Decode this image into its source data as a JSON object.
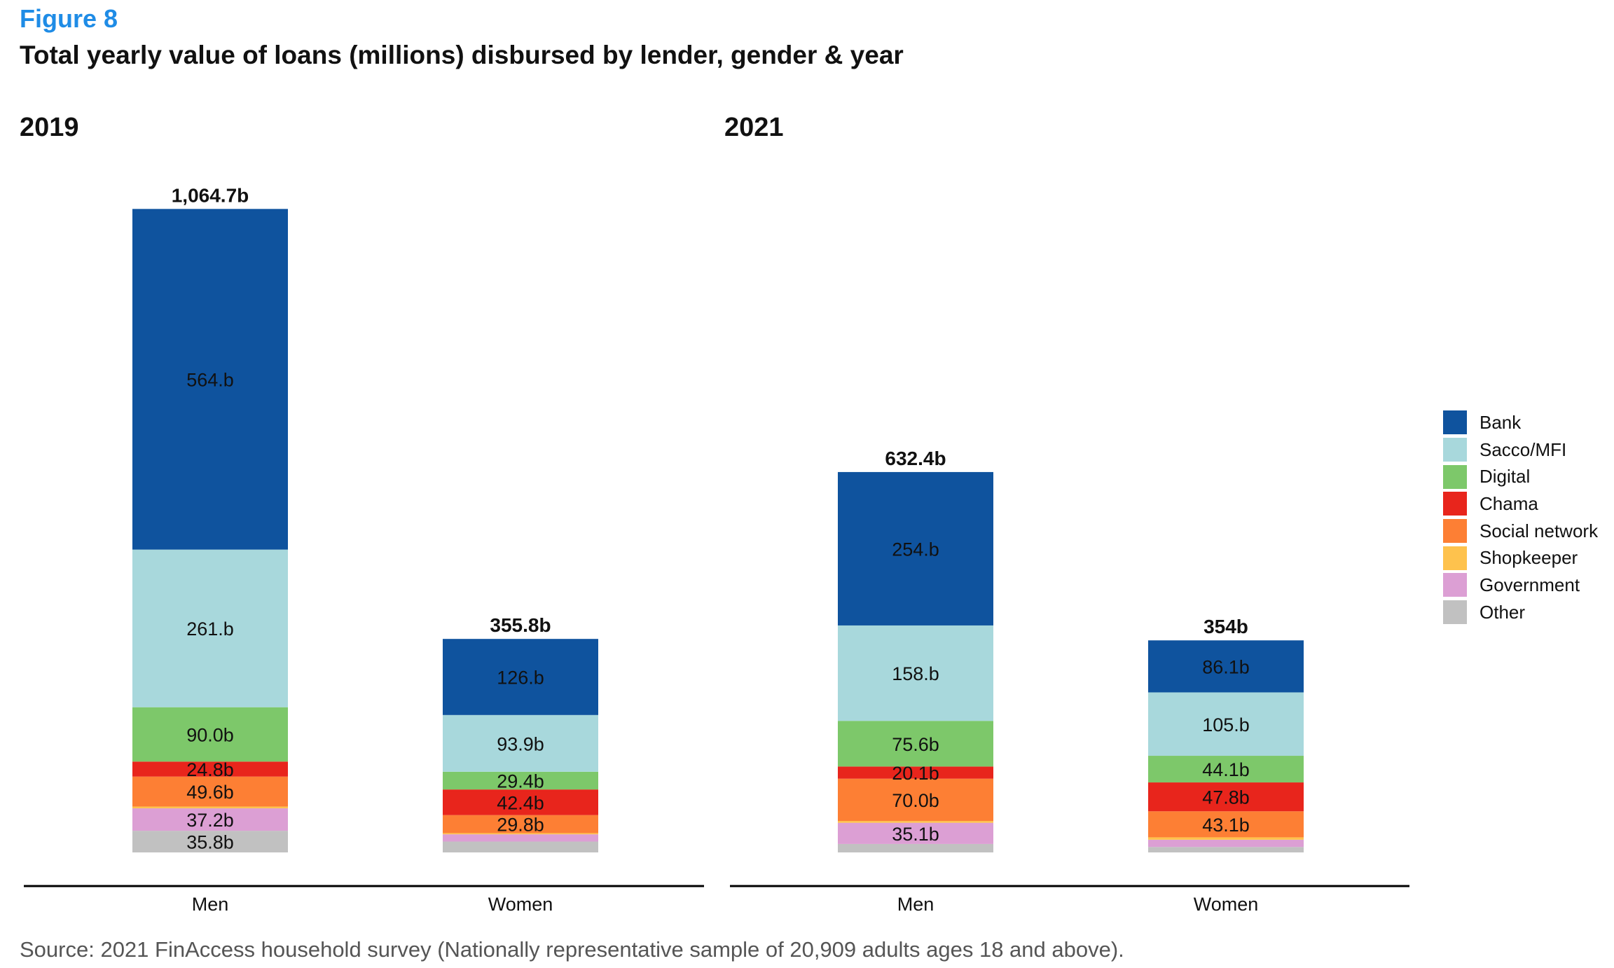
{
  "figure_label": "Figure 8",
  "title": "Total yearly value of loans (millions) disbursed by lender, gender & year",
  "source": "Source: 2021 FinAccess household survey (Nationally representative sample of 20,909  adults ages 18 and above).",
  "legend": [
    {
      "name": "Bank",
      "color": "#0f539e"
    },
    {
      "name": "Sacco/MFI",
      "color": "#a8d8dc"
    },
    {
      "name": "Digital",
      "color": "#7dc86a"
    },
    {
      "name": "Chama",
      "color": "#e8251c"
    },
    {
      "name": "Social network",
      "color": "#fd7f34"
    },
    {
      "name": "Shopkeeper",
      "color": "#fec24d"
    },
    {
      "name": "Government",
      "color": "#dc9fd4"
    },
    {
      "name": "Other",
      "color": "#c1c1c1"
    }
  ],
  "chart_data": [
    {
      "type": "bar",
      "stacked": true,
      "title": "2019",
      "categories": [
        "Men",
        "Women"
      ],
      "totals": [
        1064.7,
        355.8
      ],
      "total_labels": [
        "1,064.7b",
        "355.8b"
      ],
      "series": [
        {
          "name": "Other",
          "values": [
            35.8,
            18.0
          ],
          "labels": [
            "35.8b",
            ""
          ]
        },
        {
          "name": "Government",
          "values": [
            37.2,
            12.0
          ],
          "labels": [
            "37.2b",
            ""
          ]
        },
        {
          "name": "Shopkeeper",
          "values": [
            3.0,
            2.0
          ],
          "labels": [
            "",
            ""
          ]
        },
        {
          "name": "Social network",
          "values": [
            49.6,
            29.8
          ],
          "labels": [
            "49.6b",
            "29.8b"
          ]
        },
        {
          "name": "Chama",
          "values": [
            24.8,
            42.4
          ],
          "labels": [
            "24.8b",
            "42.4b"
          ]
        },
        {
          "name": "Digital",
          "values": [
            90.0,
            29.4
          ],
          "labels": [
            "90.0b",
            "29.4b"
          ]
        },
        {
          "name": "Sacco/MFI",
          "values": [
            261,
            93.9
          ],
          "labels": [
            "261.b",
            "93.9b"
          ]
        },
        {
          "name": "Bank",
          "values": [
            564,
            126
          ],
          "labels": [
            "564.b",
            "126.b"
          ]
        }
      ]
    },
    {
      "type": "bar",
      "stacked": true,
      "title": "2021",
      "categories": [
        "Men",
        "Women"
      ],
      "totals": [
        632.4,
        354
      ],
      "total_labels": [
        "632.4b",
        "354b"
      ],
      "series": [
        {
          "name": "Other",
          "values": [
            14.0,
            9.0
          ],
          "labels": [
            "",
            ""
          ]
        },
        {
          "name": "Government",
          "values": [
            35.1,
            12.0
          ],
          "labels": [
            "35.1b",
            ""
          ]
        },
        {
          "name": "Shopkeeper",
          "values": [
            3.0,
            4.0
          ],
          "labels": [
            "",
            ""
          ]
        },
        {
          "name": "Social network",
          "values": [
            70.0,
            43.1
          ],
          "labels": [
            "70.0b",
            "43.1b"
          ]
        },
        {
          "name": "Chama",
          "values": [
            20.1,
            47.8
          ],
          "labels": [
            "20.1b",
            "47.8b"
          ]
        },
        {
          "name": "Digital",
          "values": [
            75.6,
            44.1
          ],
          "labels": [
            "75.6b",
            "44.1b"
          ]
        },
        {
          "name": "Sacco/MFI",
          "values": [
            158,
            105
          ],
          "labels": [
            "158.b",
            "105.b"
          ]
        },
        {
          "name": "Bank",
          "values": [
            254,
            86.1
          ],
          "labels": [
            "254.b",
            "86.1b"
          ]
        }
      ]
    }
  ]
}
